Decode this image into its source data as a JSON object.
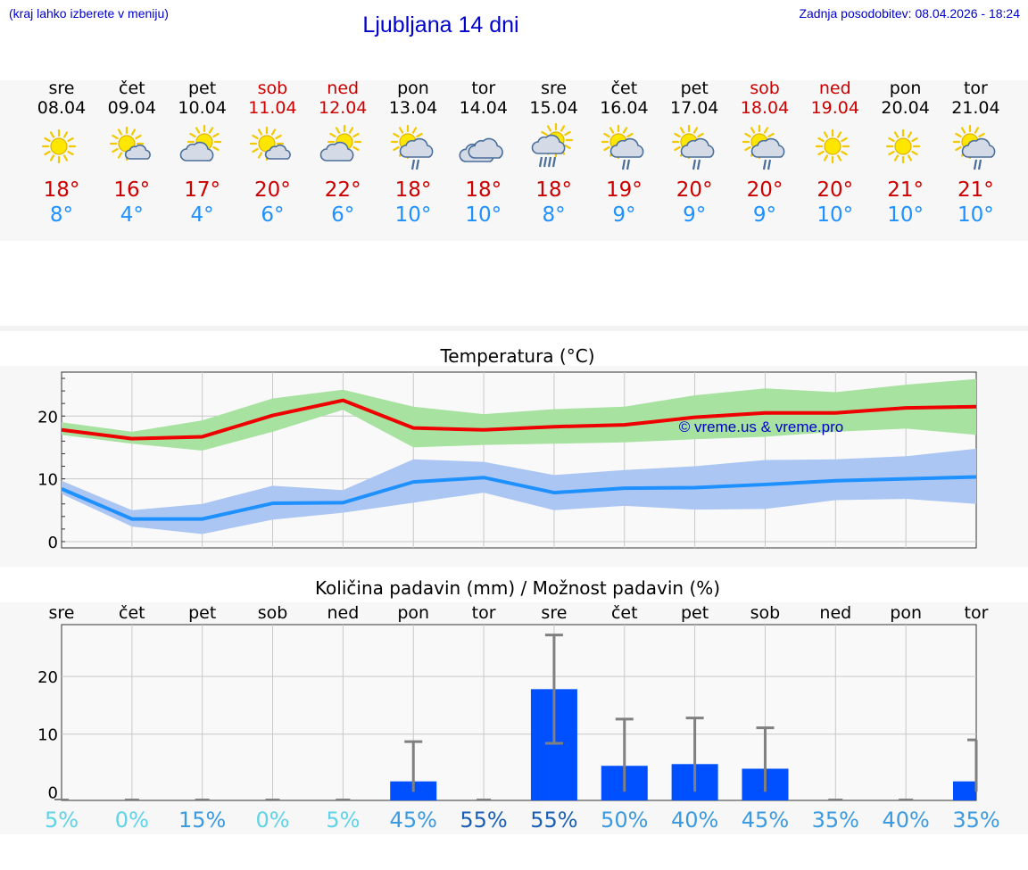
{
  "header": {
    "menu_hint": "(kraj lahko izberete v meniju)",
    "title": "Ljubljana 14 dni",
    "last_update": "Zadnja posodobitev: 08.04.2026 - 18:24"
  },
  "days": [
    {
      "name": "sre",
      "date": "08.04",
      "weekend": false,
      "icon": "sun-icon",
      "tmax": "18°",
      "tmin": "8°"
    },
    {
      "name": "čet",
      "date": "09.04",
      "weekend": false,
      "icon": "sun-small-cloud-icon",
      "tmax": "16°",
      "tmin": "4°"
    },
    {
      "name": "pet",
      "date": "10.04",
      "weekend": false,
      "icon": "sun-cloud-icon",
      "tmax": "17°",
      "tmin": "4°"
    },
    {
      "name": "sob",
      "date": "11.04",
      "weekend": true,
      "icon": "sun-small-cloud-icon",
      "tmax": "20°",
      "tmin": "6°"
    },
    {
      "name": "ned",
      "date": "12.04",
      "weekend": true,
      "icon": "sun-cloud-icon",
      "tmax": "22°",
      "tmin": "6°"
    },
    {
      "name": "pon",
      "date": "13.04",
      "weekend": false,
      "icon": "sun-cloud-rain-icon",
      "tmax": "18°",
      "tmin": "10°"
    },
    {
      "name": "tor",
      "date": "14.04",
      "weekend": false,
      "icon": "cloudy-icon",
      "tmax": "18°",
      "tmin": "10°"
    },
    {
      "name": "sre",
      "date": "15.04",
      "weekend": false,
      "icon": "sun-cloud-heavy-rain-icon",
      "tmax": "18°",
      "tmin": "8°"
    },
    {
      "name": "čet",
      "date": "16.04",
      "weekend": false,
      "icon": "sun-cloud-rain-icon",
      "tmax": "19°",
      "tmin": "9°"
    },
    {
      "name": "pet",
      "date": "17.04",
      "weekend": false,
      "icon": "sun-cloud-rain-icon",
      "tmax": "20°",
      "tmin": "9°"
    },
    {
      "name": "sob",
      "date": "18.04",
      "weekend": true,
      "icon": "sun-cloud-rain-icon",
      "tmax": "20°",
      "tmin": "9°"
    },
    {
      "name": "ned",
      "date": "19.04",
      "weekend": true,
      "icon": "sun-icon",
      "tmax": "20°",
      "tmin": "10°"
    },
    {
      "name": "pon",
      "date": "20.04",
      "weekend": false,
      "icon": "sun-icon",
      "tmax": "21°",
      "tmin": "10°"
    },
    {
      "name": "tor",
      "date": "21.04",
      "weekend": false,
      "icon": "sun-cloud-rain-icon",
      "tmax": "21°",
      "tmin": "10°"
    }
  ],
  "colors": {
    "max_line": "#ee0000",
    "max_band": "#a8e2a0",
    "min_line": "#1e90ff",
    "min_band": "#abc6f3",
    "bar": "#0050ff",
    "error": "#808080",
    "grid": "#c8c8c8",
    "prob_light": "#5fd3e8",
    "prob_mid": "#3b9ae0",
    "prob_dark": "#1b5fb4",
    "weekend": "#cc0000",
    "link": "#0000cc"
  },
  "chart_data": [
    {
      "type": "line",
      "title": "Temperatura (°C)",
      "xlabel": "",
      "ylabel": "",
      "ylim": [
        -1,
        27
      ],
      "yticks": [
        0,
        10,
        20
      ],
      "x": [
        0,
        1,
        2,
        3,
        4,
        5,
        6,
        7,
        8,
        9,
        10,
        11,
        12,
        13
      ],
      "watermark": "© vreme.us & vreme.pro",
      "grid": true,
      "series": [
        {
          "name": "max",
          "values": [
            17.8,
            16.4,
            16.7,
            20.1,
            22.5,
            18.1,
            17.8,
            18.3,
            18.6,
            19.8,
            20.5,
            20.5,
            21.3,
            21.5
          ],
          "low": [
            17.0,
            15.6,
            14.5,
            17.5,
            21.0,
            15.0,
            15.4,
            15.6,
            15.8,
            16.3,
            16.7,
            17.5,
            18.0,
            17.0
          ],
          "high": [
            19.0,
            17.5,
            19.3,
            22.8,
            24.2,
            21.5,
            20.3,
            21.1,
            21.5,
            23.3,
            24.4,
            23.8,
            25.0,
            25.9
          ]
        },
        {
          "name": "min",
          "values": [
            8.4,
            3.6,
            3.6,
            6.1,
            6.2,
            9.5,
            10.2,
            7.8,
            8.5,
            8.6,
            9.1,
            9.7,
            10.0,
            10.3
          ],
          "low": [
            7.6,
            2.4,
            1.2,
            3.5,
            4.6,
            6.2,
            7.8,
            5.0,
            5.7,
            5.1,
            5.2,
            6.6,
            6.8,
            6.0
          ],
          "high": [
            9.7,
            5.0,
            6.0,
            8.9,
            8.2,
            13.1,
            12.7,
            10.6,
            11.4,
            12.0,
            13.0,
            13.1,
            13.6,
            14.8
          ]
        }
      ]
    },
    {
      "type": "bar",
      "title": "Količina padavin (mm) / Možnost padavin (%)",
      "categories": [
        "sre",
        "čet",
        "pet",
        "sob",
        "ned",
        "pon",
        "tor",
        "sre",
        "čet",
        "pet",
        "sob",
        "ned",
        "pon",
        "tor"
      ],
      "values": [
        0,
        0,
        0,
        0,
        0,
        1.8,
        0,
        17.8,
        4.5,
        4.8,
        4.0,
        0,
        0,
        1.8
      ],
      "error_high": [
        0,
        0,
        0,
        0,
        0,
        8.7,
        0,
        27.2,
        12.6,
        12.8,
        11.1,
        0,
        0,
        9.0
      ],
      "error_low": [
        0,
        0,
        0,
        0,
        0,
        0,
        0,
        8.4,
        0,
        0,
        0,
        0,
        0,
        0
      ],
      "probability": [
        "5%",
        "0%",
        "15%",
        "0%",
        "5%",
        "45%",
        "55%",
        "55%",
        "50%",
        "40%",
        "45%",
        "35%",
        "40%",
        "35%"
      ],
      "probability_level": [
        "light",
        "light",
        "mid",
        "light",
        "light",
        "mid",
        "dark",
        "dark",
        "mid",
        "mid",
        "mid",
        "mid",
        "mid",
        "mid"
      ],
      "ylim": [
        -1.5,
        29
      ],
      "yticks": [
        0,
        10,
        20
      ],
      "grid": true
    }
  ]
}
